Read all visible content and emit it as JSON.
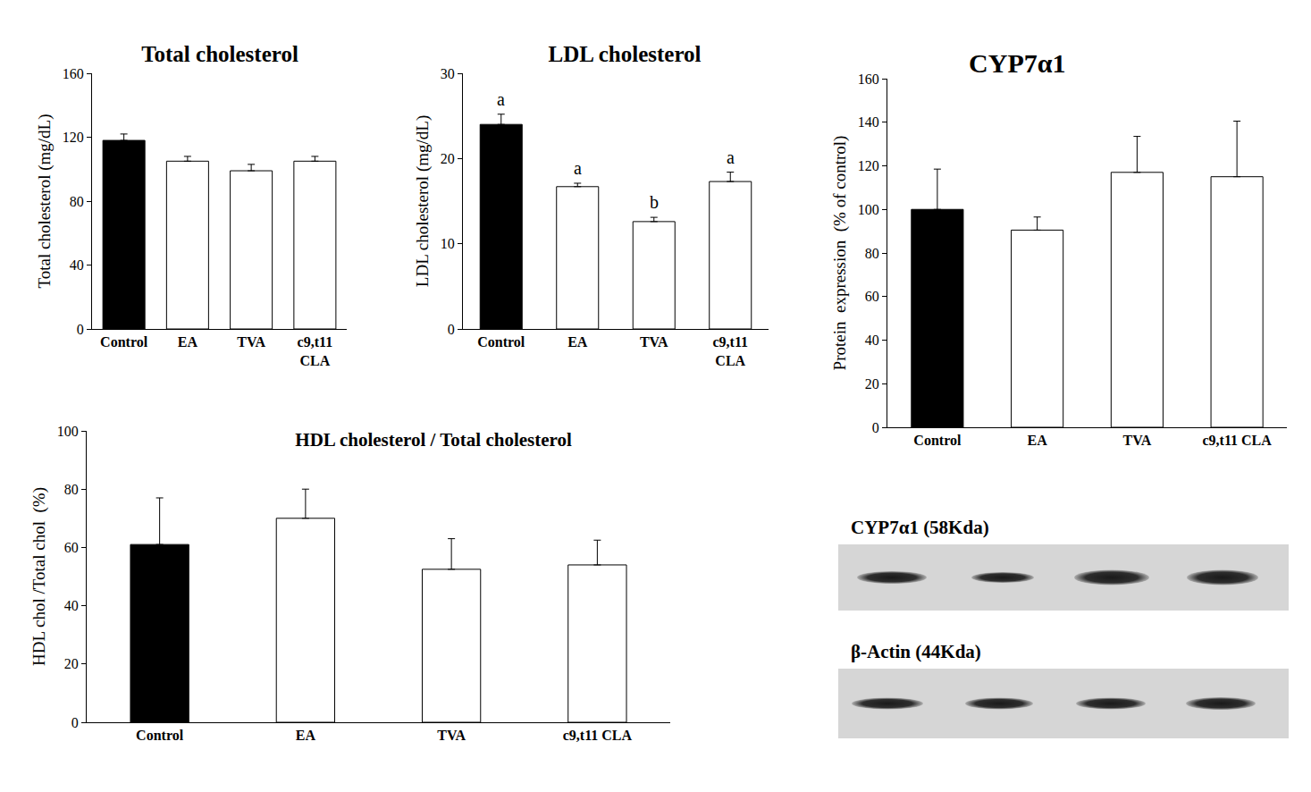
{
  "chart_data": [
    {
      "type": "bar",
      "title": "Total cholesterol",
      "y_label": "Total cholesterol (mg/dL)",
      "categories": [
        "Control",
        "EA",
        "TVA",
        "c9,t11 CLA"
      ],
      "values": [
        118,
        105,
        99,
        105
      ],
      "errors": [
        4,
        3,
        4,
        3
      ],
      "colors": [
        "#000000",
        "#ffffff",
        "#ffffff",
        "#ffffff"
      ],
      "ylim": [
        0,
        160
      ],
      "yticks": [
        0,
        40,
        80,
        120,
        160
      ],
      "grid": false
    },
    {
      "type": "bar",
      "title": "LDL cholesterol",
      "y_label": "LDL cholesterol (mg/dL)",
      "categories": [
        "Control",
        "EA",
        "TVA",
        "c9,t11 CLA"
      ],
      "values": [
        24,
        16.7,
        12.6,
        17.3
      ],
      "errors": [
        1.2,
        0.4,
        0.5,
        1.1
      ],
      "annotations": [
        "a",
        "a",
        "b",
        "a"
      ],
      "colors": [
        "#000000",
        "#ffffff",
        "#ffffff",
        "#ffffff"
      ],
      "ylim": [
        0,
        30
      ],
      "yticks": [
        0,
        10,
        20,
        30
      ],
      "grid": false
    },
    {
      "type": "bar",
      "title": "HDL cholesterol / Total cholesterol",
      "y_label": "HDL chol /Total chol  (%)",
      "categories": [
        "Control",
        "EA",
        "TVA",
        "c9,t11 CLA"
      ],
      "values": [
        61,
        70,
        52.5,
        54
      ],
      "errors": [
        16,
        10,
        10.5,
        8.5
      ],
      "colors": [
        "#000000",
        "#ffffff",
        "#ffffff",
        "#ffffff"
      ],
      "ylim": [
        0,
        100
      ],
      "yticks": [
        0,
        20,
        40,
        60,
        80,
        100
      ],
      "grid": false
    },
    {
      "type": "bar",
      "title": "CYP7α1",
      "y_label": "Protein  expression  (% of control)",
      "categories": [
        "Control",
        "EA",
        "TVA",
        "c9,t11 CLA"
      ],
      "values": [
        100,
        90.5,
        117,
        115
      ],
      "errors": [
        18.5,
        6,
        16.5,
        25.5
      ],
      "colors": [
        "#000000",
        "#ffffff",
        "#ffffff",
        "#ffffff"
      ],
      "ylim": [
        0,
        160
      ],
      "yticks": [
        0,
        20,
        40,
        60,
        80,
        100,
        120,
        140,
        160
      ],
      "grid": false
    }
  ],
  "blots": [
    {
      "label": "CYP7α1 (58Kda)"
    },
    {
      "label": "β-Actin (44Kda)"
    }
  ]
}
